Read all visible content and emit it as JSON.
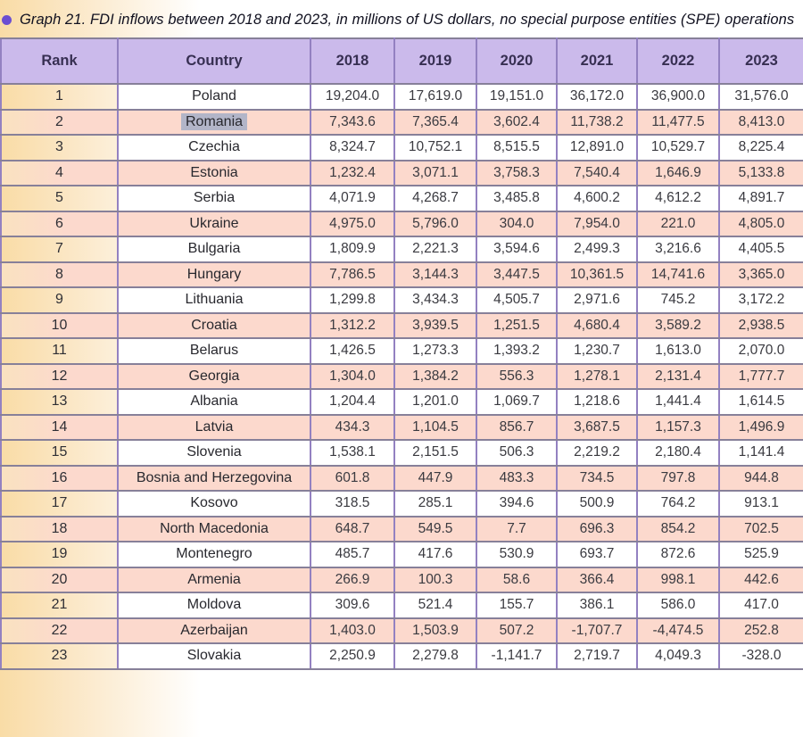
{
  "page": {
    "bullet_color": "#6b4ed2",
    "header_bg": "#cbbaeb",
    "row_pink": "#fcd9cd",
    "left_gradient_start": "#f9dca6",
    "selection_bg": "#b2b5c8",
    "border_horizontal": "#878099",
    "border_vertical": "#9381c1"
  },
  "chart_data": {
    "type": "table",
    "title": "Graph 21. FDI inflows between 2018 and 2023, in millions of US dollars, no special purpose entities (SPE) operations",
    "columns": [
      "Rank",
      "Country",
      "2018",
      "2019",
      "2020",
      "2021",
      "2022",
      "2023"
    ],
    "rows": [
      [
        "1",
        "Poland",
        "19,204.0",
        "17,619.0",
        "19,151.0",
        "36,172.0",
        "36,900.0",
        "31,576.0"
      ],
      [
        "2",
        "Romania",
        "7,343.6",
        "7,365.4",
        "3,602.4",
        "11,738.2",
        "11,477.5",
        "8,413.0"
      ],
      [
        "3",
        "Czechia",
        "8,324.7",
        "10,752.1",
        "8,515.5",
        "12,891.0",
        "10,529.7",
        "8,225.4"
      ],
      [
        "4",
        "Estonia",
        "1,232.4",
        "3,071.1",
        "3,758.3",
        "7,540.4",
        "1,646.9",
        "5,133.8"
      ],
      [
        "5",
        "Serbia",
        "4,071.9",
        "4,268.7",
        "3,485.8",
        "4,600.2",
        "4,612.2",
        "4,891.7"
      ],
      [
        "6",
        "Ukraine",
        "4,975.0",
        "5,796.0",
        "304.0",
        "7,954.0",
        "221.0",
        "4,805.0"
      ],
      [
        "7",
        "Bulgaria",
        "1,809.9",
        "2,221.3",
        "3,594.6",
        "2,499.3",
        "3,216.6",
        "4,405.5"
      ],
      [
        "8",
        "Hungary",
        "7,786.5",
        "3,144.3",
        "3,447.5",
        "10,361.5",
        "14,741.6",
        "3,365.0"
      ],
      [
        "9",
        "Lithuania",
        "1,299.8",
        "3,434.3",
        "4,505.7",
        "2,971.6",
        "745.2",
        "3,172.2"
      ],
      [
        "10",
        "Croatia",
        "1,312.2",
        "3,939.5",
        "1,251.5",
        "4,680.4",
        "3,589.2",
        "2,938.5"
      ],
      [
        "11",
        "Belarus",
        "1,426.5",
        "1,273.3",
        "1,393.2",
        "1,230.7",
        "1,613.0",
        "2,070.0"
      ],
      [
        "12",
        "Georgia",
        "1,304.0",
        "1,384.2",
        "556.3",
        "1,278.1",
        "2,131.4",
        "1,777.7"
      ],
      [
        "13",
        "Albania",
        "1,204.4",
        "1,201.0",
        "1,069.7",
        "1,218.6",
        "1,441.4",
        "1,614.5"
      ],
      [
        "14",
        "Latvia",
        "434.3",
        "1,104.5",
        "856.7",
        "3,687.5",
        "1,157.3",
        "1,496.9"
      ],
      [
        "15",
        "Slovenia",
        "1,538.1",
        "2,151.5",
        "506.3",
        "2,219.2",
        "2,180.4",
        "1,141.4"
      ],
      [
        "16",
        "Bosnia and Herzegovina",
        "601.8",
        "447.9",
        "483.3",
        "734.5",
        "797.8",
        "944.8"
      ],
      [
        "17",
        "Kosovo",
        "318.5",
        "285.1",
        "394.6",
        "500.9",
        "764.2",
        "913.1"
      ],
      [
        "18",
        "North Macedonia",
        "648.7",
        "549.5",
        "7.7",
        "696.3",
        "854.2",
        "702.5"
      ],
      [
        "19",
        "Montenegro",
        "485.7",
        "417.6",
        "530.9",
        "693.7",
        "872.6",
        "525.9"
      ],
      [
        "20",
        "Armenia",
        "266.9",
        "100.3",
        "58.6",
        "366.4",
        "998.1",
        "442.6"
      ],
      [
        "21",
        "Moldova",
        "309.6",
        "521.4",
        "155.7",
        "386.1",
        "586.0",
        "417.0"
      ],
      [
        "22",
        "Azerbaijan",
        "1,403.0",
        "1,503.9",
        "507.2",
        "-1,707.7",
        "-4,474.5",
        "252.8"
      ],
      [
        "23",
        "Slovakia",
        "2,250.9",
        "2,279.8",
        "-1,141.7",
        "2,719.7",
        "4,049.3",
        "-328.0"
      ]
    ],
    "highlighted_cell": {
      "rank": "2",
      "column": "Country",
      "value": "Romania"
    },
    "layout": {
      "striped": true,
      "grid": true,
      "header_position": "top"
    }
  }
}
